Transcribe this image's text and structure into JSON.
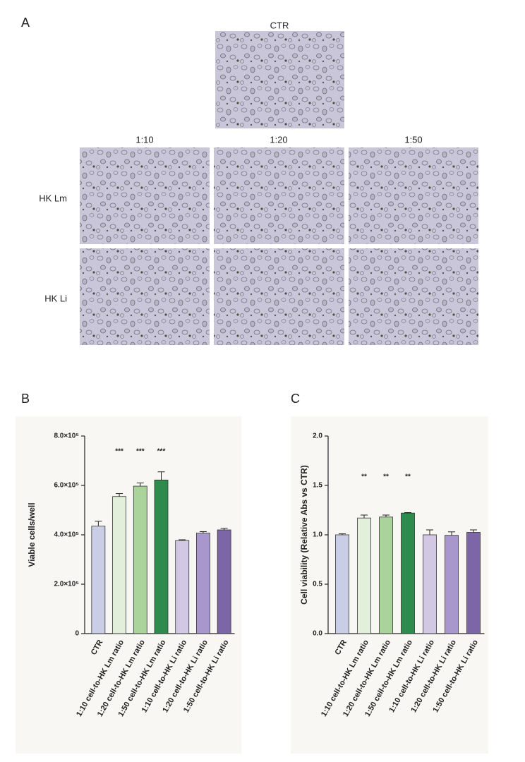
{
  "panel_a": {
    "label": "A",
    "ctr_label": "CTR",
    "columns": [
      "1:10",
      "1:20",
      "1:50"
    ],
    "rows": [
      "HK Lm",
      "HK Li"
    ]
  },
  "chart_data": [
    {
      "type": "bar",
      "panel_label": "B",
      "y_label": "Viable cells/well",
      "categories": [
        "CTR",
        "1:10 cell-to-HK Lm ratio",
        "1:20 cell-to-HK Lm ratio",
        "1:50 cell-to-HK Lm ratio",
        "1:10 cell-to-HK Li ratio",
        "1:20 cell-to-HK Li ratio",
        "1:50 cell-to-HK Li ratio"
      ],
      "values": [
        435000,
        555000,
        597000,
        622000,
        377000,
        407000,
        420000
      ],
      "errors": [
        20000,
        12000,
        13000,
        33000,
        3000,
        6000,
        6000
      ],
      "annotations": [
        null,
        "***",
        "***",
        "***",
        null,
        null,
        null
      ],
      "colors": [
        "#c9cde6",
        "#e2efdb",
        "#a9d39a",
        "#2e8b4e",
        "#d3c8e3",
        "#a897cc",
        "#7d66a8"
      ],
      "ylim": [
        0,
        800000
      ],
      "yticks": [
        0,
        {
          "value": 200000,
          "label": "2.0×10⁵"
        },
        {
          "value": 400000,
          "label": "4.0×10⁵"
        },
        {
          "value": 600000,
          "label": "6.0×10⁵"
        },
        {
          "value": 800000,
          "label": "8.0×10⁵"
        }
      ],
      "grid": false
    },
    {
      "type": "bar",
      "panel_label": "C",
      "y_label": "Cell viability (Relative Abs vs CTR)",
      "categories": [
        "CTR",
        "1:10 cell-to-HK Lm ratio",
        "1:20 cell-to-HK Lm ratio",
        "1:50 cell-to-HK Lm ratio",
        "1:10 cell-to-HK Li ratio",
        "1:20 cell-to-HK Li ratio",
        "1:50 cell-to-HK Li ratio"
      ],
      "values": [
        1.0,
        1.17,
        1.18,
        1.22,
        1.0,
        0.995,
        1.025
      ],
      "errors": [
        0.01,
        0.03,
        0.02,
        0.005,
        0.05,
        0.035,
        0.025
      ],
      "annotations": [
        null,
        "**",
        "**",
        "**",
        null,
        null,
        null
      ],
      "colors": [
        "#c9cde6",
        "#e2efdb",
        "#a9d39a",
        "#2e8b4e",
        "#d3c8e3",
        "#a897cc",
        "#7d66a8"
      ],
      "ylim": [
        0,
        2
      ],
      "yticks": [
        {
          "value": 0,
          "label": "0.0"
        },
        0.5,
        {
          "value": 1,
          "label": "1.0"
        },
        1.5,
        {
          "value": 2,
          "label": "2.0"
        }
      ],
      "grid": false
    }
  ]
}
